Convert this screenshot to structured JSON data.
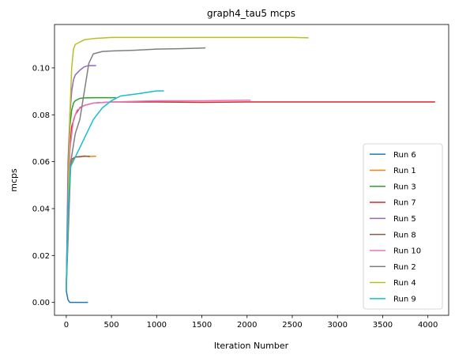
{
  "chart_data": {
    "type": "line",
    "title": "graph4_tau5 mcps",
    "xlabel": "Iteration Number",
    "ylabel": "mcps",
    "xlim": [
      -130,
      4230
    ],
    "ylim": [
      -0.0055,
      0.1185
    ],
    "xticks": [
      0,
      500,
      1000,
      1500,
      2000,
      2500,
      3000,
      3500,
      4000
    ],
    "yticks": [
      0.0,
      0.02,
      0.04,
      0.06,
      0.08,
      0.1
    ],
    "ytick_labels": [
      "0.00",
      "0.02",
      "0.04",
      "0.06",
      "0.08",
      "0.10"
    ],
    "grid": false,
    "legend": "lower-right",
    "series": [
      {
        "name": "Run 6",
        "color": "#1f77b4",
        "x": [
          0,
          20,
          40,
          60,
          100,
          160,
          240
        ],
        "y": [
          0.005,
          0.001,
          0.0,
          0.0,
          0.0,
          0.0,
          0.0
        ]
      },
      {
        "name": "Run 1",
        "color": "#ff7f0e",
        "x": [
          0,
          20,
          40,
          60,
          80,
          100,
          150,
          200,
          250,
          300,
          330
        ],
        "y": [
          0.005,
          0.04,
          0.057,
          0.06,
          0.061,
          0.062,
          0.062,
          0.0625,
          0.0622,
          0.0623,
          0.0623
        ]
      },
      {
        "name": "Run 3",
        "color": "#2ca02c",
        "x": [
          0,
          20,
          40,
          60,
          80,
          100,
          150,
          200,
          300,
          400,
          550
        ],
        "y": [
          0.005,
          0.05,
          0.075,
          0.082,
          0.085,
          0.086,
          0.087,
          0.0872,
          0.0873,
          0.0873,
          0.0873
        ]
      },
      {
        "name": "Run 7",
        "color": "#d62728",
        "x": [
          0,
          30,
          60,
          100,
          150,
          200,
          300,
          500,
          1000,
          1500,
          2000,
          2500,
          3000,
          3500,
          4080
        ],
        "y": [
          0.005,
          0.06,
          0.075,
          0.08,
          0.083,
          0.084,
          0.085,
          0.0855,
          0.0855,
          0.0853,
          0.0855,
          0.0855,
          0.0855,
          0.0855,
          0.0855
        ]
      },
      {
        "name": "Run 5",
        "color": "#9467bd",
        "x": [
          0,
          20,
          40,
          60,
          80,
          100,
          150,
          200,
          250,
          300,
          330
        ],
        "y": [
          0.005,
          0.06,
          0.08,
          0.09,
          0.095,
          0.097,
          0.099,
          0.1005,
          0.101,
          0.101,
          0.101
        ]
      },
      {
        "name": "Run 8",
        "color": "#8c564b",
        "x": [
          0,
          20,
          40,
          60,
          100,
          150,
          200,
          260
        ],
        "y": [
          0.005,
          0.04,
          0.058,
          0.061,
          0.062,
          0.0622,
          0.0623,
          0.0623
        ]
      },
      {
        "name": "Run 10",
        "color": "#e377c2",
        "x": [
          0,
          40,
          80,
          120,
          200,
          300,
          500,
          1000,
          1500,
          2000,
          2040
        ],
        "y": [
          0.005,
          0.065,
          0.078,
          0.082,
          0.084,
          0.085,
          0.0855,
          0.086,
          0.086,
          0.0862,
          0.0862
        ]
      },
      {
        "name": "Run 2",
        "color": "#7f7f7f",
        "x": [
          0,
          50,
          100,
          150,
          200,
          250,
          300,
          400,
          500,
          750,
          1000,
          1250,
          1540
        ],
        "y": [
          0.005,
          0.06,
          0.072,
          0.078,
          0.09,
          0.102,
          0.106,
          0.107,
          0.1072,
          0.1075,
          0.108,
          0.1082,
          0.1085
        ]
      },
      {
        "name": "Run 4",
        "color": "#bcbd22",
        "x": [
          0,
          20,
          40,
          60,
          80,
          100,
          150,
          200,
          300,
          500,
          1000,
          1500,
          2000,
          2500,
          2680
        ],
        "y": [
          0.005,
          0.04,
          0.08,
          0.1,
          0.108,
          0.11,
          0.111,
          0.112,
          0.1125,
          0.113,
          0.113,
          0.113,
          0.113,
          0.113,
          0.1128
        ]
      },
      {
        "name": "Run 9",
        "color": "#17becf",
        "x": [
          0,
          20,
          50,
          100,
          150,
          200,
          250,
          300,
          400,
          500,
          600,
          800,
          1000,
          1080
        ],
        "y": [
          0.005,
          0.04,
          0.058,
          0.062,
          0.066,
          0.07,
          0.074,
          0.078,
          0.083,
          0.086,
          0.088,
          0.089,
          0.0902,
          0.0902
        ]
      }
    ]
  }
}
